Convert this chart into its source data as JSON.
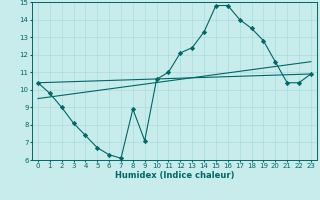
{
  "xlabel": "Humidex (Indice chaleur)",
  "xlim": [
    -0.5,
    23.5
  ],
  "ylim": [
    6,
    15
  ],
  "xticks": [
    0,
    1,
    2,
    3,
    4,
    5,
    6,
    7,
    8,
    9,
    10,
    11,
    12,
    13,
    14,
    15,
    16,
    17,
    18,
    19,
    20,
    21,
    22,
    23
  ],
  "yticks": [
    6,
    7,
    8,
    9,
    10,
    11,
    12,
    13,
    14,
    15
  ],
  "bg_color": "#c8ecec",
  "line_color": "#006666",
  "grid_color": "#aadddd",
  "series": [
    {
      "x": [
        0,
        1,
        2,
        3,
        4,
        5,
        6,
        7,
        8,
        9,
        10,
        11,
        12,
        13,
        14,
        15,
        16,
        17,
        18,
        19,
        20,
        21,
        22,
        23
      ],
      "y": [
        10.4,
        9.8,
        9.0,
        8.1,
        7.4,
        6.7,
        6.3,
        6.1,
        8.9,
        7.1,
        10.6,
        11.0,
        12.1,
        12.4,
        13.3,
        14.8,
        14.8,
        14.0,
        13.5,
        12.8,
        11.6,
        10.4,
        10.4,
        10.9
      ],
      "marker": true
    },
    {
      "x": [
        0,
        23
      ],
      "y": [
        10.4,
        10.9
      ],
      "marker": false
    },
    {
      "x": [
        0,
        23
      ],
      "y": [
        9.5,
        11.6
      ],
      "marker": false
    }
  ],
  "tick_fontsize": 5.0,
  "xlabel_fontsize": 6.0,
  "linewidth": 0.8,
  "markersize": 2.2
}
